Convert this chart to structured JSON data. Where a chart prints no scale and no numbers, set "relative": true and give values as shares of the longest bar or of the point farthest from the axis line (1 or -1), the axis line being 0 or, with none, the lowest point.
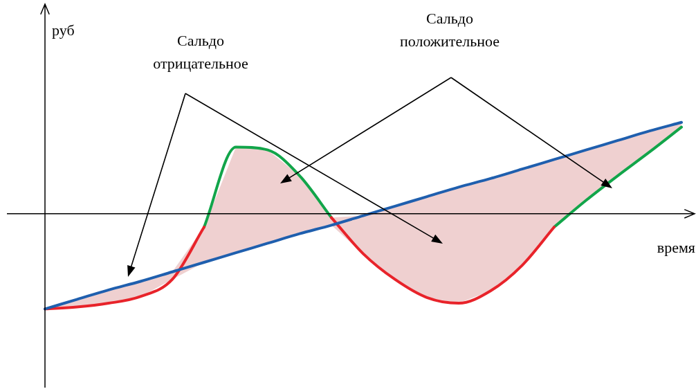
{
  "chart_data": {
    "type": "line",
    "relative": true,
    "xlabel": "время",
    "marker": "none",
    "legend": false,
    "annotations": [
      "руб",
      "Сальдо отрицательное",
      "Сальдо положительное"
    ],
    "categories": [
      null,
      null,
      null,
      null,
      null,
      null,
      null,
      null,
      null,
      null,
      null,
      null,
      null,
      null,
      null,
      null,
      null,
      null,
      null,
      null,
      null
    ],
    "series": [
      {
        "color": "#1f5fae",
        "values": [
          -1,
          -0.9,
          -0.8,
          -0.71,
          -0.61,
          -0.51,
          -0.41,
          -0.31,
          -0.21,
          -0.12,
          -0.02,
          0.08,
          0.18,
          0.28,
          0.37,
          0.47,
          0.57,
          0.67,
          0.77,
          0.87,
          0.96
        ],
        "lower": [
          -1,
          -0.98,
          -0.94,
          -0.87,
          -0.69,
          -0.51,
          -0.41,
          -0.31,
          -0.21,
          -0.12,
          -0.42,
          -0.69,
          -0.88,
          -0.94,
          -0.81,
          -0.54,
          -0.14,
          0.14,
          0.4,
          0.65,
          0.91
        ],
        "upper": [
          -1,
          -0.9,
          -0.8,
          -0.71,
          -0.61,
          -0.14,
          0.7,
          0.67,
          0.4,
          -0.04,
          -0.02,
          0.08,
          0.18,
          0.28,
          0.37,
          0.47,
          0.57,
          0.67,
          0.77,
          0.87,
          0.96
        ]
      },
      {
        "color": "#e8232a",
        "values": [
          -1,
          -0.98,
          -0.94,
          -0.87,
          -0.69,
          -0.14,
          null,
          null,
          null,
          -0.04,
          -0.42,
          -0.69,
          -0.88,
          -0.94,
          -0.81,
          -0.54,
          -0.14,
          null,
          null,
          null,
          null
        ]
      },
      {
        "color": "#12a54a",
        "values": [
          null,
          null,
          null,
          null,
          null,
          -0.14,
          0.7,
          0.67,
          0.4,
          -0.04,
          null,
          null,
          null,
          null,
          null,
          null,
          -0.14,
          0.14,
          0.4,
          0.65,
          0.91
        ]
      }
    ]
  }
}
